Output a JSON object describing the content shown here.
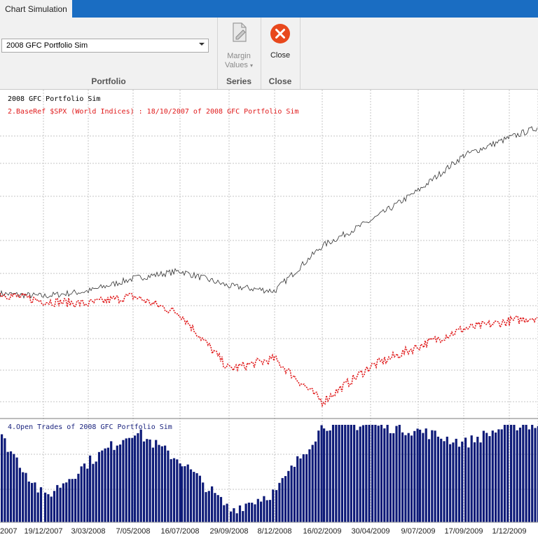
{
  "window": {
    "tab": "Chart Simulation",
    "accent_color": "#1a6dc2"
  },
  "ribbon": {
    "portfolio": {
      "selected": "2008 GFC Portfolio Sim",
      "group_label": "Portfolio"
    },
    "series": {
      "margin_label_1": "Margin",
      "margin_label_2": "Values",
      "group_label": "Series",
      "icon": "document-edit-icon"
    },
    "close": {
      "label": "Close",
      "group_label": "Close",
      "icon": "close-circle-icon",
      "color": "#e8481c"
    }
  },
  "chart": {
    "legend_main": "2008 GFC Portfolio Sim",
    "legend_ref": "2.BaseRef $SPX (World Indices) : 18/10/2007  of 2008 GFC Portfolio Sim",
    "legend_trades": "4.Open Trades  of 2008 GFC Portfolio Sim",
    "x_tick_labels": [
      "2007",
      "19/12/2007",
      "3/03/2008",
      "7/05/2008",
      "16/07/2008",
      "29/09/2008",
      "8/12/2008",
      "16/02/2009",
      "30/04/2009",
      "9/07/2009",
      "17/09/2009",
      "1/12/2009"
    ],
    "colors": {
      "portfolio_line": "#333333",
      "baseref_line": "#e0191a",
      "open_trades_bars": "#0d1a78",
      "ref_legend_text": "#e0191a",
      "trades_legend_text": "#1a237e"
    }
  },
  "chart_data": {
    "type": "line",
    "x": [
      "2007",
      "19/12/2007",
      "3/03/2008",
      "7/05/2008",
      "16/07/2008",
      "29/09/2008",
      "8/12/2008",
      "16/02/2009",
      "30/04/2009",
      "9/07/2009",
      "17/09/2009",
      "1/12/2009"
    ],
    "series": [
      {
        "name": "2008 GFC Portfolio Sim",
        "values": [
          100,
          99,
          101,
          106,
          109,
          103,
          101,
          119,
          129,
          141,
          155,
          162
        ]
      },
      {
        "name": "2.BaseRef $SPX (World Indices) : 18/10/2007  of 2008 GFC Portfolio Sim",
        "values": [
          100,
          97,
          96,
          99,
          92,
          70,
          74,
          57,
          71,
          79,
          86,
          89
        ]
      }
    ],
    "bars": {
      "name": "4.Open Trades  of 2008 GFC Portfolio Sim",
      "x": [
        "2007",
        "19/12/2007",
        "3/03/2008",
        "7/05/2008",
        "16/07/2008",
        "29/09/2008",
        "8/12/2008",
        "16/02/2009",
        "30/04/2009",
        "9/07/2009",
        "17/09/2009",
        "1/12/2009"
      ],
      "values": [
        14,
        4,
        10,
        15,
        10,
        2,
        5,
        16,
        16,
        15,
        13,
        16
      ],
      "ylim": [
        0,
        16
      ]
    },
    "grid": true
  }
}
